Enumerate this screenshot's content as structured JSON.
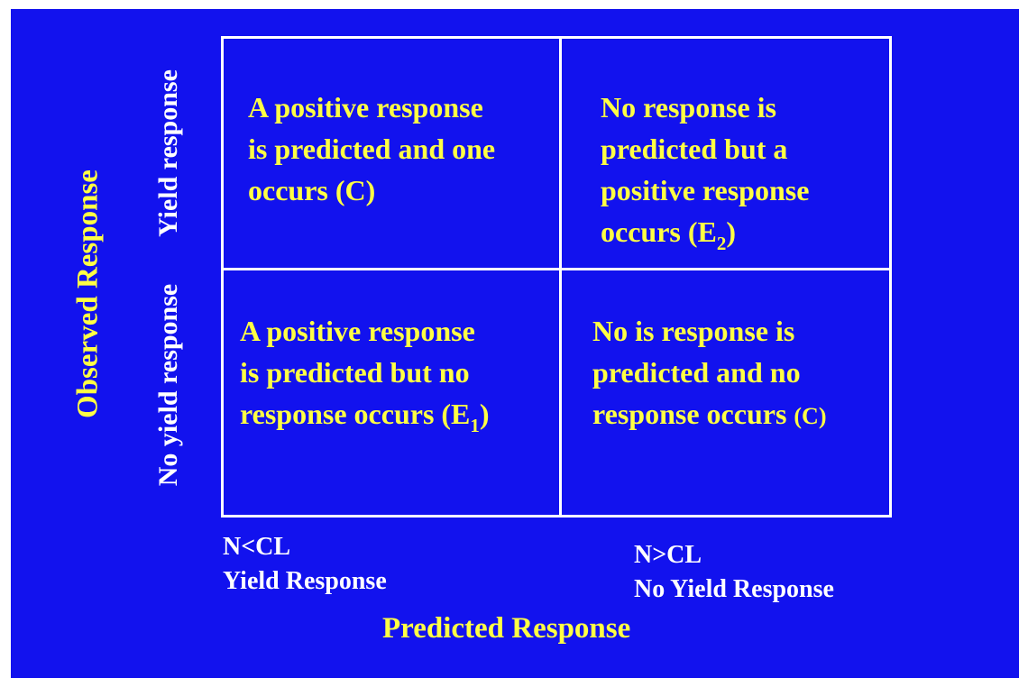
{
  "axes": {
    "y_title": "Observed Response",
    "x_title": "Predicted Response"
  },
  "rows": {
    "top": "Yield response",
    "bottom": "No yield response"
  },
  "columns": {
    "left": {
      "line1": "N<CL",
      "line2": "Yield Response"
    },
    "right": {
      "line1": "N>CL",
      "line2": "No Yield Response"
    }
  },
  "cells": {
    "top_left": {
      "lines": [
        "A positive response",
        "is predicted and one",
        "occurs (C)"
      ]
    },
    "top_right": {
      "lines": [
        "No response is",
        "predicted but a",
        "positive response",
        "occurs (E",
        "2",
        ")"
      ]
    },
    "bottom_left": {
      "lines": [
        "A positive response",
        "is predicted but no",
        "response occurs (E",
        "1",
        ")"
      ]
    },
    "bottom_right": {
      "lines": [
        "No is response is",
        "predicted and no",
        "response occurs ",
        "(C)"
      ]
    }
  },
  "colors": {
    "background": "#1212ee",
    "accent_text": "#ffff44",
    "label_text": "#ffffff",
    "grid_lines": "#ffffff"
  }
}
